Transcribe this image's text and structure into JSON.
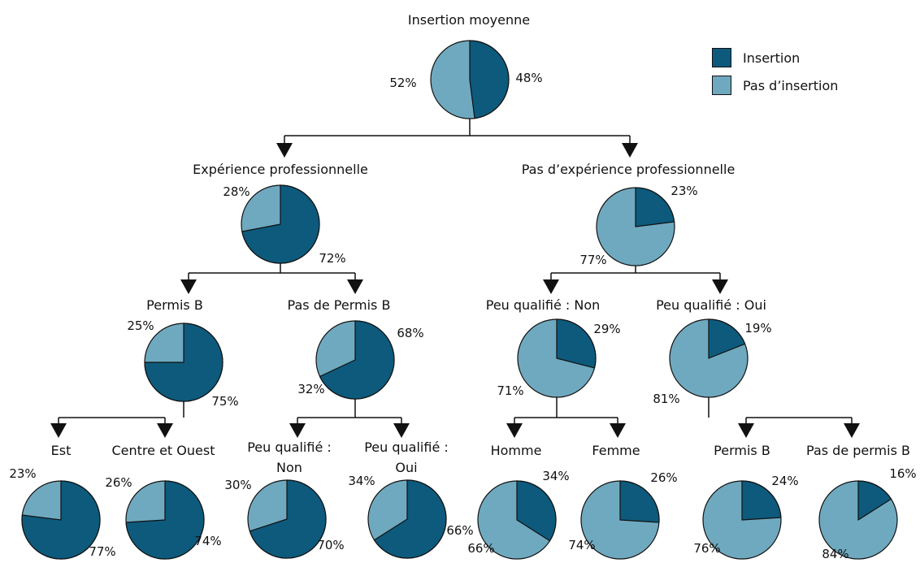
{
  "colors": {
    "insertion": "#0d5a7c",
    "pas_insertion": "#6fa9bf"
  },
  "legend": {
    "insertion": "Insertion",
    "pas_insertion": "Pas d’insertion"
  },
  "chart_data": {
    "type": "pie",
    "series_names": [
      "Insertion",
      "Pas d’insertion"
    ],
    "nodes": [
      {
        "id": "root",
        "parent": null,
        "label": "Insertion moyenne",
        "insertion": 48,
        "pas_insertion": 52,
        "insertion_label": "48%",
        "pas_insertion_label": "52%"
      },
      {
        "id": "exp",
        "parent": "root",
        "label": "Expérience professionnelle",
        "insertion": 72,
        "pas_insertion": 28,
        "insertion_label": "72%",
        "pas_insertion_label": "28%"
      },
      {
        "id": "noexp",
        "parent": "root",
        "label": "Pas d’expérience professionnelle",
        "insertion": 23,
        "pas_insertion": 77,
        "insertion_label": "23%",
        "pas_insertion_label": "77%"
      },
      {
        "id": "permisB",
        "parent": "exp",
        "label": "Permis B",
        "insertion": 75,
        "pas_insertion": 25,
        "insertion_label": "75%",
        "pas_insertion_label": "25%"
      },
      {
        "id": "nopermis",
        "parent": "exp",
        "label": "Pas de Permis B",
        "insertion": 68,
        "pas_insertion": 32,
        "insertion_label": "68%",
        "pas_insertion_label": "32%"
      },
      {
        "id": "pqnon",
        "parent": "noexp",
        "label": "Peu qualifié : Non",
        "insertion": 29,
        "pas_insertion": 71,
        "insertion_label": "29%",
        "pas_insertion_label": "71%"
      },
      {
        "id": "pqoui",
        "parent": "noexp",
        "label": "Peu qualifié : Oui",
        "insertion": 19,
        "pas_insertion": 81,
        "insertion_label": "19%",
        "pas_insertion_label": "81%"
      },
      {
        "id": "est",
        "parent": "permisB",
        "label": "Est",
        "insertion": 77,
        "pas_insertion": 23,
        "insertion_label": "77%",
        "pas_insertion_label": "23%"
      },
      {
        "id": "centre",
        "parent": "permisB",
        "label": "Centre et Ouest",
        "insertion": 74,
        "pas_insertion": 26,
        "insertion_label": "74%",
        "pas_insertion_label": "26%"
      },
      {
        "id": "pq_non2",
        "parent": "nopermis",
        "label": "Peu qualifié :\nNon",
        "insertion": 70,
        "pas_insertion": 30,
        "insertion_label": "70%",
        "pas_insertion_label": "30%"
      },
      {
        "id": "pq_oui2",
        "parent": "nopermis",
        "label": "Peu qualifié :\nOui",
        "insertion": 66,
        "pas_insertion": 34,
        "insertion_label": "66%",
        "pas_insertion_label": "34%"
      },
      {
        "id": "homme",
        "parent": "pqnon",
        "label": "Homme",
        "insertion": 34,
        "pas_insertion": 66,
        "insertion_label": "34%",
        "pas_insertion_label": "66%"
      },
      {
        "id": "femme",
        "parent": "pqnon",
        "label": "Femme",
        "insertion": 26,
        "pas_insertion": 74,
        "insertion_label": "26%",
        "pas_insertion_label": "74%"
      },
      {
        "id": "permisB2",
        "parent": "pqoui",
        "label": "Permis B",
        "insertion": 24,
        "pas_insertion": 76,
        "insertion_label": "24%",
        "pas_insertion_label": "76%"
      },
      {
        "id": "nopermis2",
        "parent": "pqoui",
        "label": "Pas de permis B",
        "insertion": 16,
        "pas_insertion": 84,
        "insertion_label": "16%",
        "pas_insertion_label": "84%"
      }
    ]
  }
}
